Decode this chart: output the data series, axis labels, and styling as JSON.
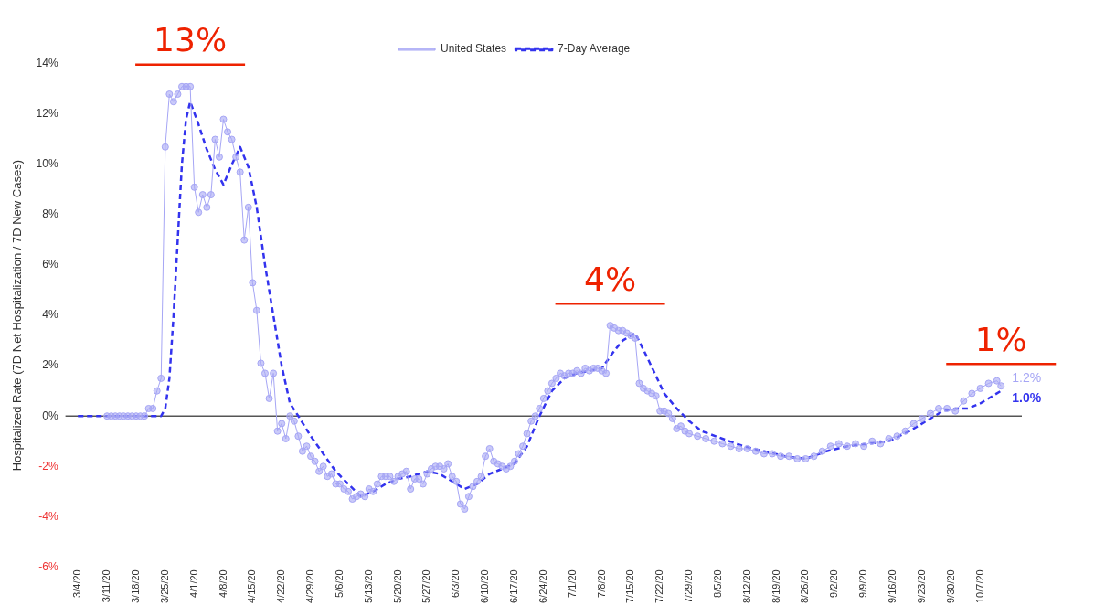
{
  "chart_data": {
    "type": "line",
    "ylabel": "Hospitalized Rate (7D Net Hospitalization / 7D New Cases)",
    "xlim": [
      "--03-01",
      "--10-17"
    ],
    "xticks": [
      {
        "value": "--03-04",
        "label": "3/4/20"
      },
      {
        "value": "--03-11",
        "label": "3/11/20"
      },
      {
        "value": "--03-18",
        "label": "3/18/20"
      },
      {
        "value": "--03-25",
        "label": "3/25/20"
      },
      {
        "value": "--04-01",
        "label": "4/1/20"
      },
      {
        "value": "--04-08",
        "label": "4/8/20"
      },
      {
        "value": "--04-15",
        "label": "4/15/20"
      },
      {
        "value": "--04-22",
        "label": "4/22/20"
      },
      {
        "value": "--04-29",
        "label": "4/29/20"
      },
      {
        "value": "--05-06",
        "label": "5/6/20"
      },
      {
        "value": "--05-13",
        "label": "5/13/20"
      },
      {
        "value": "--05-20",
        "label": "5/20/20"
      },
      {
        "value": "--05-27",
        "label": "5/27/20"
      },
      {
        "value": "--06-03",
        "label": "6/3/20"
      },
      {
        "value": "--06-10",
        "label": "6/10/20"
      },
      {
        "value": "--06-17",
        "label": "6/17/20"
      },
      {
        "value": "--06-24",
        "label": "6/24/20"
      },
      {
        "value": "--07-01",
        "label": "7/1/20"
      },
      {
        "value": "--07-08",
        "label": "7/8/20"
      },
      {
        "value": "--07-15",
        "label": "7/15/20"
      },
      {
        "value": "--07-22",
        "label": "7/22/20"
      },
      {
        "value": "--07-29",
        "label": "7/29/20"
      },
      {
        "value": "--08-05",
        "label": "8/5/20"
      },
      {
        "value": "--08-12",
        "label": "8/12/20"
      },
      {
        "value": "--08-19",
        "label": "8/19/20"
      },
      {
        "value": "--08-26",
        "label": "8/26/20"
      },
      {
        "value": "--09-02",
        "label": "9/2/20"
      },
      {
        "value": "--09-09",
        "label": "9/9/20"
      },
      {
        "value": "--09-16",
        "label": "9/16/20"
      },
      {
        "value": "--09-23",
        "label": "9/23/20"
      },
      {
        "value": "--09-30",
        "label": "9/30/20"
      },
      {
        "value": "--10-07",
        "label": "10/7/20"
      }
    ],
    "ylim": [
      -6,
      14
    ],
    "yticks": [
      {
        "value": -6,
        "label": "-6%"
      },
      {
        "value": -4,
        "label": "-4%"
      },
      {
        "value": -2,
        "label": "-2%"
      },
      {
        "value": 0,
        "label": "0%"
      },
      {
        "value": 2,
        "label": "2%"
      },
      {
        "value": 4,
        "label": "4%"
      },
      {
        "value": 6,
        "label": "6%"
      },
      {
        "value": 8,
        "label": "8%"
      },
      {
        "value": 10,
        "label": "10%"
      },
      {
        "value": 12,
        "label": "12%"
      },
      {
        "value": 14,
        "label": "14%"
      }
    ],
    "grid": false,
    "legend": "top",
    "ref_lines": [
      {
        "axis": "y",
        "value": 0,
        "color": "#555555"
      }
    ],
    "annotations": [
      {
        "text": "13%",
        "x": "--03-31",
        "y": 13.1
      },
      {
        "text": "4%",
        "x": "--07-10",
        "y": 3.6
      },
      {
        "text": "1%",
        "x": "--10-12",
        "y": 1.2
      }
    ],
    "series": [
      {
        "name": "United States",
        "color": "#a6a6f5",
        "marker": "circle",
        "line_style": "solid",
        "x": [
          "--03-11",
          "--03-12",
          "--03-13",
          "--03-14",
          "--03-15",
          "--03-16",
          "--03-17",
          "--03-18",
          "--03-19",
          "--03-20",
          "--03-21",
          "--03-22",
          "--03-23",
          "--03-24",
          "--03-25",
          "--03-26",
          "--03-27",
          "--03-28",
          "--03-29",
          "--03-30",
          "--03-31",
          "--04-01",
          "--04-02",
          "--04-03",
          "--04-04",
          "--04-05",
          "--04-06",
          "--04-07",
          "--04-08",
          "--04-09",
          "--04-10",
          "--04-11",
          "--04-12",
          "--04-13",
          "--04-14",
          "--04-15",
          "--04-16",
          "--04-17",
          "--04-18",
          "--04-19",
          "--04-20",
          "--04-21",
          "--04-22",
          "--04-23",
          "--04-24",
          "--04-25",
          "--04-26",
          "--04-27",
          "--04-28",
          "--04-29",
          "--04-30",
          "--05-01",
          "--05-02",
          "--05-03",
          "--05-04",
          "--05-05",
          "--05-06",
          "--05-07",
          "--05-08",
          "--05-09",
          "--05-10",
          "--05-11",
          "--05-12",
          "--05-13",
          "--05-14",
          "--05-15",
          "--05-16",
          "--05-17",
          "--05-18",
          "--05-19",
          "--05-20",
          "--05-21",
          "--05-22",
          "--05-23",
          "--05-24",
          "--05-25",
          "--05-26",
          "--05-27",
          "--05-28",
          "--05-29",
          "--05-30",
          "--05-31",
          "--06-01",
          "--06-02",
          "--06-03",
          "--06-04",
          "--06-05",
          "--06-06",
          "--06-07",
          "--06-08",
          "--06-09",
          "--06-10",
          "--06-11",
          "--06-12",
          "--06-13",
          "--06-14",
          "--06-15",
          "--06-16",
          "--06-17",
          "--06-18",
          "--06-19",
          "--06-20",
          "--06-21",
          "--06-22",
          "--06-23",
          "--06-24",
          "--06-25",
          "--06-26",
          "--06-27",
          "--06-28",
          "--06-29",
          "--06-30",
          "--07-01",
          "--07-02",
          "--07-03",
          "--07-04",
          "--07-05",
          "--07-06",
          "--07-07",
          "--07-08",
          "--07-09",
          "--07-10",
          "--07-11",
          "--07-12",
          "--07-13",
          "--07-14",
          "--07-15",
          "--07-16",
          "--07-17",
          "--07-18",
          "--07-19",
          "--07-20",
          "--07-21",
          "--07-22",
          "--07-23",
          "--07-24",
          "--07-25",
          "--07-26",
          "--07-27",
          "--07-28",
          "--07-29",
          "--07-31",
          "--08-02",
          "--08-04",
          "--08-06",
          "--08-08",
          "--08-10",
          "--08-12",
          "--08-14",
          "--08-16",
          "--08-18",
          "--08-20",
          "--08-22",
          "--08-24",
          "--08-26",
          "--08-28",
          "--08-30",
          "--09-01",
          "--09-03",
          "--09-05",
          "--09-07",
          "--09-09",
          "--09-11",
          "--09-13",
          "--09-15",
          "--09-17",
          "--09-19",
          "--09-21",
          "--09-23",
          "--09-25",
          "--09-27",
          "--09-29",
          "--10-01",
          "--10-03",
          "--10-05",
          "--10-07",
          "--10-09",
          "--10-11",
          "--10-12"
        ],
        "values": [
          0,
          0,
          0,
          0,
          0,
          0,
          0,
          0,
          0,
          0,
          0.3,
          0.3,
          1.0,
          1.5,
          10.7,
          12.8,
          12.5,
          12.8,
          13.1,
          13.1,
          13.1,
          9.1,
          8.1,
          8.8,
          8.3,
          8.8,
          11.0,
          10.3,
          11.8,
          11.3,
          11.0,
          10.3,
          9.7,
          7.0,
          8.3,
          5.3,
          4.2,
          2.1,
          1.7,
          0.7,
          1.7,
          -0.6,
          -0.3,
          -0.9,
          0,
          -0.2,
          -0.8,
          -1.4,
          -1.2,
          -1.6,
          -1.8,
          -2.2,
          -2.0,
          -2.4,
          -2.3,
          -2.7,
          -2.7,
          -2.9,
          -3.0,
          -3.3,
          -3.2,
          -3.1,
          -3.2,
          -2.9,
          -3.0,
          -2.7,
          -2.4,
          -2.4,
          -2.4,
          -2.6,
          -2.4,
          -2.3,
          -2.2,
          -2.9,
          -2.5,
          -2.5,
          -2.7,
          -2.3,
          -2.1,
          -2.0,
          -2.0,
          -2.1,
          -1.9,
          -2.4,
          -2.6,
          -3.5,
          -3.7,
          -3.2,
          -2.8,
          -2.6,
          -2.4,
          -1.6,
          -1.3,
          -1.8,
          -1.9,
          -2.0,
          -2.1,
          -2.0,
          -1.8,
          -1.5,
          -1.2,
          -0.7,
          -0.2,
          0,
          0.3,
          0.7,
          1.0,
          1.3,
          1.5,
          1.7,
          1.6,
          1.7,
          1.7,
          1.8,
          1.7,
          1.9,
          1.8,
          1.9,
          1.9,
          1.8,
          1.7,
          3.6,
          3.5,
          3.4,
          3.4,
          3.3,
          3.2,
          3.1,
          1.3,
          1.1,
          1.0,
          0.9,
          0.8,
          0.2,
          0.2,
          0.1,
          -0.1,
          -0.5,
          -0.4,
          -0.6,
          -0.7,
          -0.8,
          -0.9,
          -1.0,
          -1.1,
          -1.2,
          -1.3,
          -1.3,
          -1.4,
          -1.5,
          -1.5,
          -1.6,
          -1.6,
          -1.7,
          -1.7,
          -1.6,
          -1.4,
          -1.2,
          -1.1,
          -1.2,
          -1.1,
          -1.2,
          -1.0,
          -1.1,
          -0.9,
          -0.8,
          -0.6,
          -0.3,
          -0.1,
          0.1,
          0.3,
          0.3,
          0.2,
          0.6,
          0.9,
          1.1,
          1.3,
          1.4,
          1.2
        ],
        "value_labels": [
          null,
          null,
          null,
          null,
          null,
          null,
          null,
          null,
          null,
          null,
          null,
          null,
          null,
          null,
          null,
          null,
          null,
          null,
          null,
          null,
          null,
          null,
          null,
          null,
          null,
          null,
          null,
          null,
          null,
          null,
          null,
          null,
          null,
          null,
          null,
          null,
          null,
          null,
          null,
          null,
          null,
          null,
          null,
          null,
          null,
          null,
          null,
          null,
          null,
          null,
          null,
          null,
          null,
          null,
          null,
          null,
          null,
          null,
          null,
          null,
          null,
          null,
          null,
          null,
          null,
          null,
          null,
          null,
          null,
          null,
          null,
          null,
          null,
          null,
          null,
          null,
          null,
          null,
          null,
          null,
          null,
          null,
          null,
          null,
          null,
          null,
          null,
          null,
          null,
          null,
          null,
          null,
          null,
          null,
          null,
          null,
          null,
          null,
          null,
          null,
          null,
          null,
          null,
          null,
          null,
          null,
          null,
          null,
          null,
          null,
          null,
          null,
          null,
          null,
          null,
          null,
          null,
          null,
          null,
          null,
          null,
          null,
          null,
          null,
          null,
          null,
          null,
          null,
          null,
          null,
          null,
          null,
          null,
          null,
          null,
          null,
          null,
          null,
          null,
          null,
          null,
          null,
          null,
          null,
          null,
          null,
          null,
          null,
          null,
          null,
          null,
          null,
          null,
          null,
          null,
          null,
          null,
          null,
          null,
          null,
          null,
          null,
          null,
          null,
          null,
          null,
          null,
          null,
          null,
          null,
          null,
          null,
          null,
          null,
          null,
          null,
          null,
          null,
          "1.2%"
        ]
      },
      {
        "name": "7-Day Average",
        "color": "#3333ee",
        "marker": "none",
        "line_style": "dashed",
        "x": [
          "--03-04",
          "--03-24",
          "--03-25",
          "--03-26",
          "--03-27",
          "--03-28",
          "--03-29",
          "--03-30",
          "--03-31",
          "--04-02",
          "--04-04",
          "--04-06",
          "--04-08",
          "--04-10",
          "--04-12",
          "--04-14",
          "--04-16",
          "--04-18",
          "--04-20",
          "--04-22",
          "--04-24",
          "--04-26",
          "--04-29",
          "--05-02",
          "--05-05",
          "--05-08",
          "--05-11",
          "--05-14",
          "--05-17",
          "--05-20",
          "--05-23",
          "--05-27",
          "--05-30",
          "--06-02",
          "--06-05",
          "--06-08",
          "--06-11",
          "--06-14",
          "--06-17",
          "--06-20",
          "--06-23",
          "--06-26",
          "--06-29",
          "--07-02",
          "--07-05",
          "--07-08",
          "--07-11",
          "--07-13",
          "--07-16",
          "--07-19",
          "--07-23",
          "--07-26",
          "--07-29",
          "--08-01",
          "--08-06",
          "--08-11",
          "--08-16",
          "--08-21",
          "--08-26",
          "--08-31",
          "--09-05",
          "--09-10",
          "--09-15",
          "--09-20",
          "--09-25",
          "--09-28",
          "--10-01",
          "--10-04",
          "--10-07",
          "--10-10",
          "--10-12"
        ],
        "value_labels": [
          null,
          null,
          null,
          null,
          null,
          null,
          null,
          null,
          null,
          null,
          null,
          null,
          null,
          null,
          null,
          null,
          null,
          null,
          null,
          null,
          null,
          null,
          null,
          null,
          null,
          null,
          null,
          null,
          null,
          null,
          null,
          null,
          null,
          null,
          null,
          null,
          null,
          null,
          null,
          null,
          null,
          null,
          null,
          null,
          null,
          null,
          null,
          null,
          null,
          null,
          null,
          null,
          null,
          null,
          null,
          null,
          null,
          null,
          null,
          null,
          null,
          null,
          null,
          null,
          null,
          null,
          null,
          null,
          null,
          null,
          "1.0%"
        ],
        "values": [
          0,
          0,
          0.3,
          1.5,
          4.0,
          7.0,
          10.0,
          11.8,
          12.5,
          11.6,
          10.6,
          9.8,
          9.2,
          10.0,
          10.7,
          9.9,
          8.3,
          6.0,
          4.0,
          2.0,
          0.5,
          0,
          -0.8,
          -1.5,
          -2.2,
          -2.7,
          -3.2,
          -3.0,
          -2.7,
          -2.5,
          -2.4,
          -2.2,
          -2.3,
          -2.6,
          -2.9,
          -2.7,
          -2.3,
          -2.1,
          -1.9,
          -1.2,
          0,
          1.0,
          1.5,
          1.7,
          1.8,
          1.9,
          2.6,
          3.0,
          3.3,
          2.3,
          0.9,
          0.3,
          -0.2,
          -0.6,
          -0.9,
          -1.2,
          -1.4,
          -1.6,
          -1.7,
          -1.4,
          -1.2,
          -1.1,
          -1.0,
          -0.6,
          -0.1,
          0.2,
          0.3,
          0.3,
          0.5,
          0.8,
          1.0
        ]
      }
    ]
  }
}
